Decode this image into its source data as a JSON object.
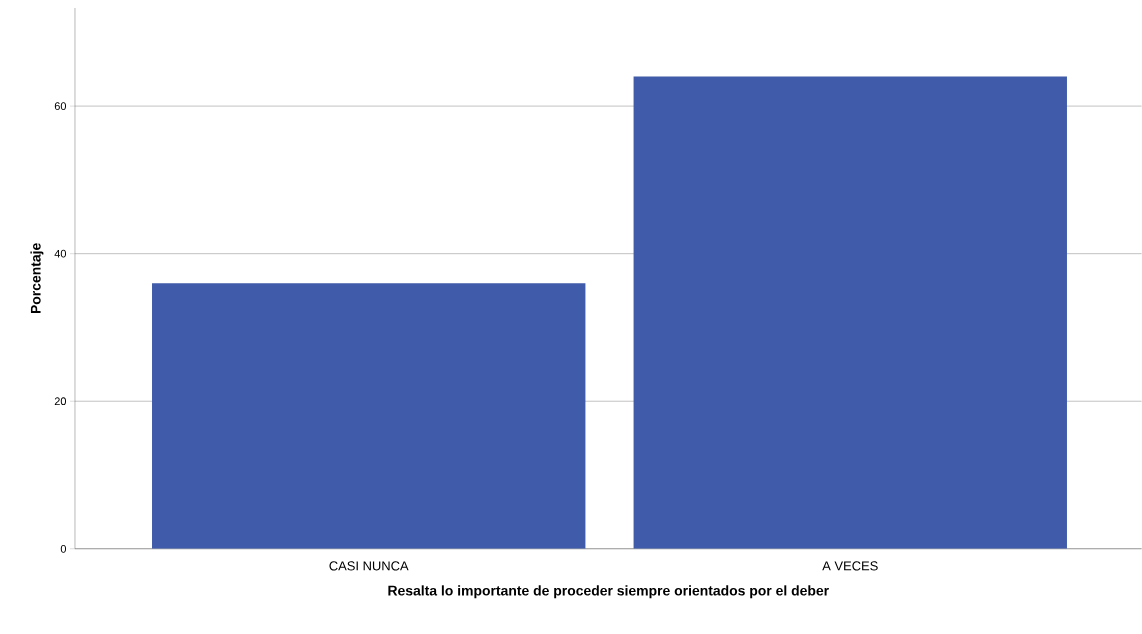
{
  "chart_data": {
    "type": "bar",
    "xlabel": "Resalta lo importante de proceder siempre orientados por el deber",
    "ylabel": "Porcentaje",
    "categories": [
      "CASI NUNCA",
      "A VECES"
    ],
    "values": [
      36,
      64
    ],
    "color": "#3f5ba9",
    "ylim": [
      0,
      73.3
    ],
    "yticks": [
      0,
      20,
      40,
      60
    ],
    "grid": "y"
  }
}
